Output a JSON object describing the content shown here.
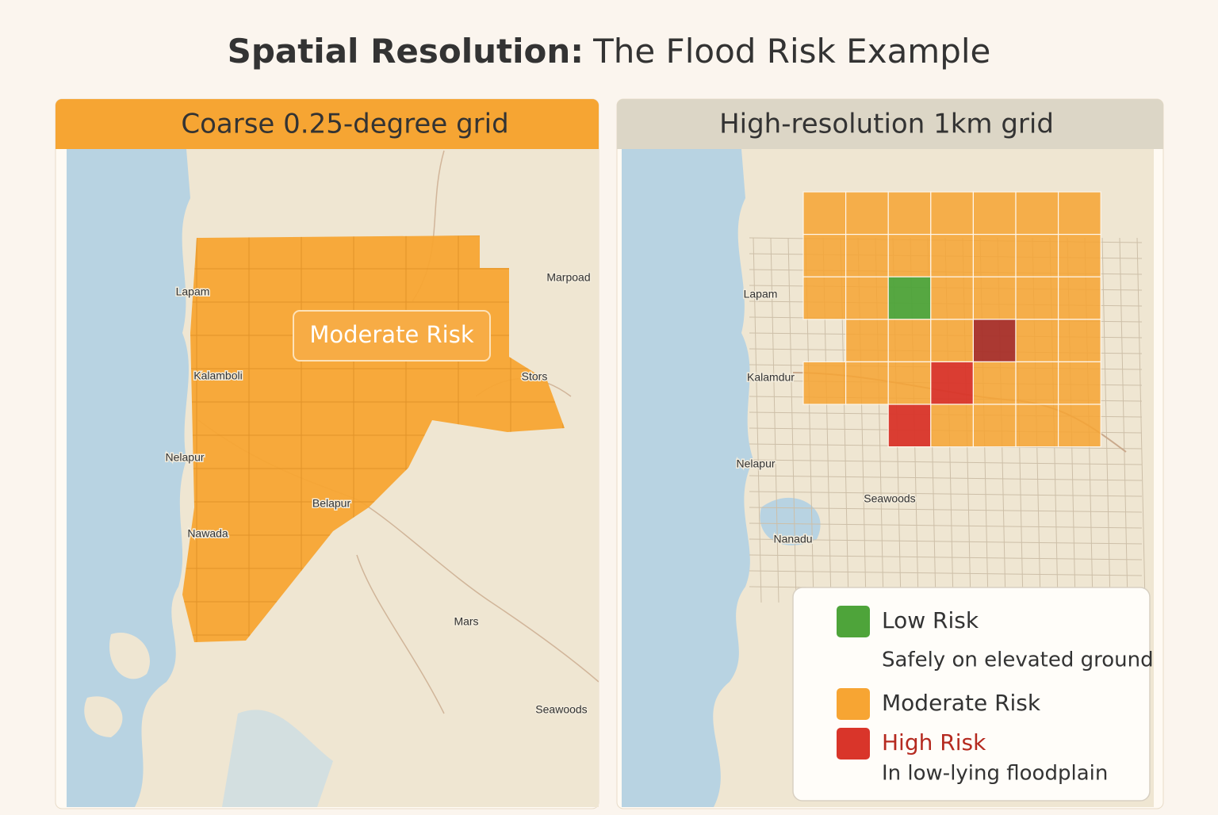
{
  "title": {
    "bold": "Spatial Resolution:",
    "rest": "The Flood Risk Example"
  },
  "panels": [
    {
      "header": "Coarse 0.25-degree grid",
      "callout": "Moderate Risk",
      "places": [
        "Lapam",
        "Kalamboli",
        "Nelapur",
        "Belapur",
        "Nawada",
        "Mars",
        "Seawoods",
        "Marpoad",
        "Stors"
      ]
    },
    {
      "header": "High-resolution 1km grid",
      "places": [
        "Lapam",
        "Kalamdur",
        "Nelapur",
        "Seawoods",
        "Nanadu"
      ]
    }
  ],
  "legend": [
    {
      "label": "Low Risk",
      "note": "Safely on elevated ground",
      "color": "#4ea43a"
    },
    {
      "label": "Moderate Risk",
      "color": "#f7a533"
    },
    {
      "label": "High Risk",
      "note": "In low-lying floodplain",
      "color": "#d9352a"
    }
  ]
}
